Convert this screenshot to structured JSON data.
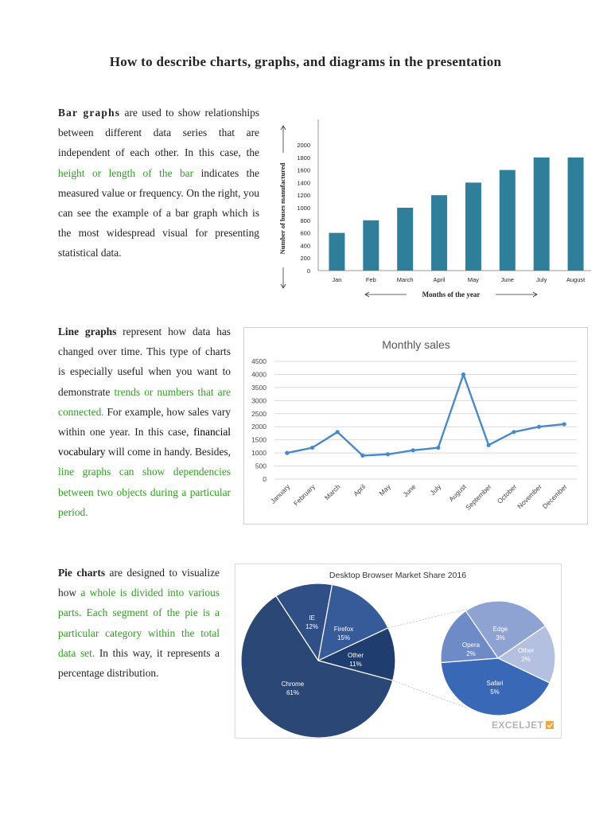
{
  "page": {
    "title": "How to describe charts, graphs, and diagrams in the presentation"
  },
  "sections": {
    "bar": {
      "lead": "Bar graphs",
      "t1": " are used to show relationships between different data series that are independent of each other. In this case, the ",
      "g1": "height or length of the bar",
      "t2": " indicates the measured value or frequency. On the right, you can see the example of a bar graph which is the most widespread visual for presenting statistical data."
    },
    "line": {
      "lead": "Line graphs",
      "t1": " represent how data has changed over time. This type of charts is especially useful when you want to demonstrate ",
      "g1": "trends or numbers that are connected.",
      "t2": " For example, how sales vary within one year. In this case, ",
      "k1": "financial vocabulary",
      "t3": " will come in handy. Besides, ",
      "g2": "line graphs can show dependencies between two objects during a particular period."
    },
    "pie": {
      "lead": "Pie charts",
      "t1": " are designed to visualize how ",
      "g1": "a whole is divided into various parts. Each segment of the pie is a particular category within the total data set.",
      "t2": " In this way, it represents a percentage distribution."
    }
  },
  "chart_data": [
    {
      "type": "bar",
      "title": "",
      "categories": [
        "Jan",
        "Feb",
        "March",
        "April",
        "May",
        "June",
        "July",
        "August"
      ],
      "values": [
        600,
        800,
        1000,
        1200,
        1400,
        1600,
        1800,
        1800
      ],
      "xlabel": "Months of the year",
      "ylabel": "Number of buses manufactured",
      "ylim": [
        0,
        2000
      ],
      "yticks": [
        0,
        200,
        400,
        600,
        800,
        1000,
        1200,
        1400,
        1600,
        1800,
        2000
      ],
      "grid": false,
      "color": "#2f7f9b"
    },
    {
      "type": "line",
      "title": "Monthly sales",
      "categories": [
        "January",
        "February",
        "March",
        "April",
        "May",
        "June",
        "July",
        "August",
        "September",
        "October",
        "November",
        "December"
      ],
      "values": [
        1000,
        1200,
        1800,
        900,
        950,
        1100,
        1200,
        4000,
        1300,
        1800,
        2000,
        2100
      ],
      "ylim": [
        0,
        4500
      ],
      "yticks": [
        0,
        500,
        1000,
        1500,
        2000,
        2500,
        3000,
        3500,
        4000,
        4500
      ],
      "grid": true,
      "color": "#4a89c8"
    },
    {
      "type": "pie",
      "title": "Desktop Browser Market Share 2016",
      "slices": [
        {
          "label": "IE",
          "value_label": "12%",
          "value": 12,
          "color": "#2f4f86"
        },
        {
          "label": "Firefox",
          "value_label": "15%",
          "value": 15,
          "color": "#375b99"
        },
        {
          "label": "Other",
          "value_label": "11%",
          "value": 11,
          "color": "#1f3d6e"
        },
        {
          "label": "Chrome",
          "value_label": "61%",
          "value": 61,
          "color": "#2a4775"
        }
      ],
      "breakout_of": "Other",
      "breakout": [
        {
          "label": "Edge",
          "value_label": "3%",
          "value": 3,
          "color": "#8fa3d2"
        },
        {
          "label": "Other",
          "value_label": "2%",
          "value": 2,
          "color": "#b4c0df"
        },
        {
          "label": "Safari",
          "value_label": "5%",
          "value": 5,
          "color": "#3868b6"
        },
        {
          "label": "Opera",
          "value_label": "2%",
          "value": 2,
          "color": "#6f8bc7"
        }
      ],
      "watermark": "EXCELJET"
    }
  ]
}
